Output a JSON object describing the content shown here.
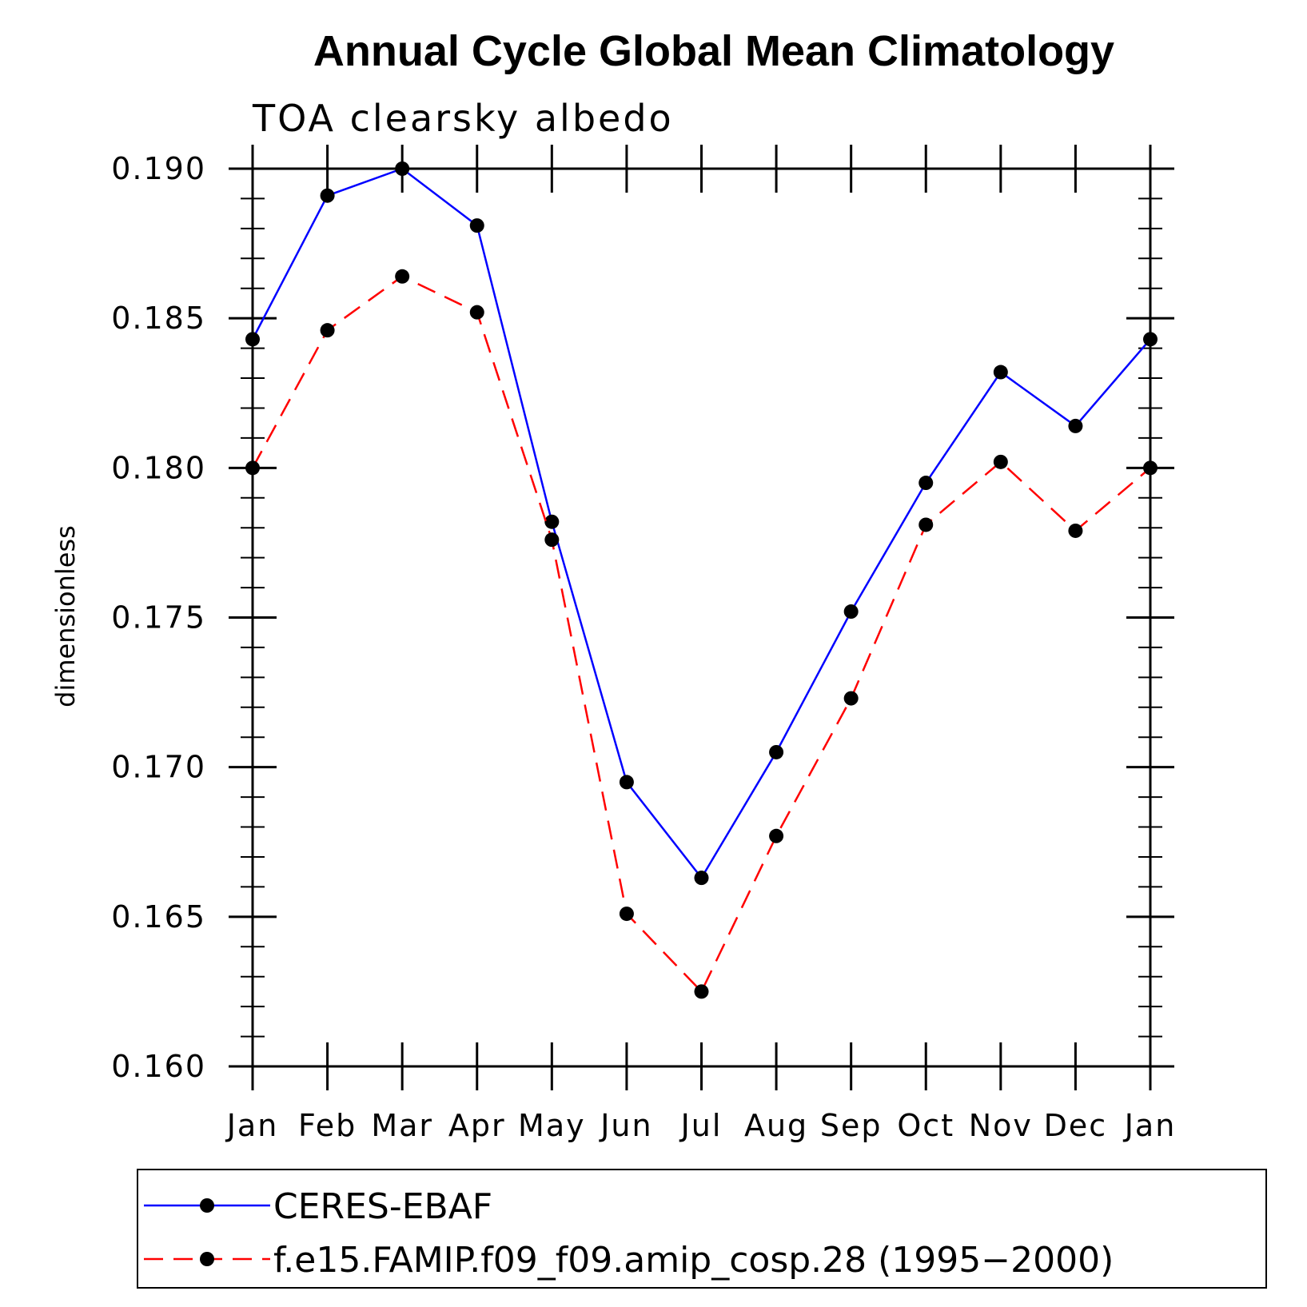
{
  "chart_data": {
    "type": "line",
    "title": "Annual Cycle Global Mean Climatology",
    "subtitle": "TOA clearsky albedo",
    "xlabel": "",
    "ylabel": "dimensionless",
    "categories": [
      "Jan",
      "Feb",
      "Mar",
      "Apr",
      "May",
      "Jun",
      "Jul",
      "Aug",
      "Sep",
      "Oct",
      "Nov",
      "Dec",
      "Jan"
    ],
    "ylim": [
      0.16,
      0.19
    ],
    "yticks": [
      "0.160",
      "0.165",
      "0.170",
      "0.175",
      "0.180",
      "0.185",
      "0.190"
    ],
    "grid": false,
    "legend_position": "bottom",
    "series": [
      {
        "name": "CERES-EBAF",
        "color": "#0000ff",
        "dash": "solid",
        "marker": "filled-circle",
        "values": [
          0.1843,
          0.1891,
          0.19,
          0.1881,
          0.1782,
          0.1695,
          0.1663,
          0.1705,
          0.1752,
          0.1795,
          0.1832,
          0.1814,
          0.1843
        ]
      },
      {
        "name": "f.e15.FAMIP.f09_f09.amip_cosp.28 (1995−2000)",
        "color": "#ff0000",
        "dash": "dashed",
        "marker": "filled-circle",
        "values": [
          0.18,
          0.1846,
          0.1864,
          0.1852,
          0.1776,
          0.1651,
          0.1625,
          0.1677,
          0.1723,
          0.1781,
          0.1802,
          0.1779,
          0.18
        ]
      }
    ]
  }
}
